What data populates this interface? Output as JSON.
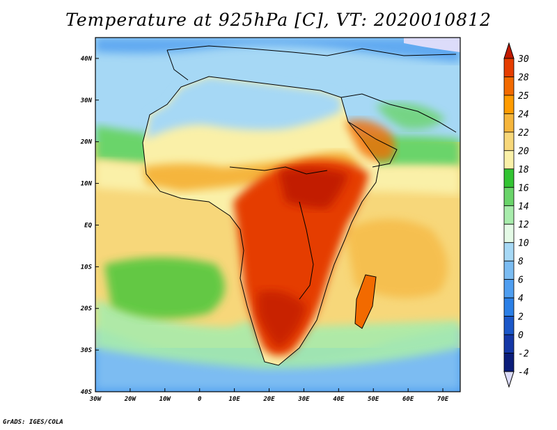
{
  "title": "Temperature at 925hPa [C], VT: 2020010812",
  "credit": "GrADS: IGES/COLA",
  "map": {
    "lon_labels": [
      "30W",
      "20W",
      "10W",
      "0",
      "10E",
      "20E",
      "30E",
      "40E",
      "50E",
      "60E",
      "70E"
    ],
    "lat_labels": [
      "40N",
      "30N",
      "20N",
      "10N",
      "EQ",
      "10S",
      "20S",
      "30S",
      "40S"
    ],
    "lon_range": [
      -30,
      75
    ],
    "lat_range": [
      -40,
      45
    ]
  },
  "colorbar": {
    "labels": [
      "30",
      "28",
      "25",
      "24",
      "22",
      "20",
      "18",
      "16",
      "14",
      "12",
      "10",
      "8",
      "6",
      "4",
      "2",
      "0",
      "-2",
      "-4"
    ],
    "colors": [
      "#c21a00",
      "#e53d00",
      "#f26a00",
      "#ff9b00",
      "#f5b53c",
      "#f7d77a",
      "#faf0a8",
      "#33c433",
      "#6ad46a",
      "#a8ecac",
      "#e4fae6",
      "#a6d8f5",
      "#7bbcf2",
      "#4f9ef0",
      "#2b7fe6",
      "#1b57c8",
      "#1437a6",
      "#0b1d7a",
      "#dcdcfa"
    ]
  },
  "palette": {
    "ocean_south_deep": "#2b7fe6",
    "ocean_south": "#7bbcf2",
    "ocean_light": "#a8ecac",
    "land_hot": "#c21a00",
    "sahara": "#7bbcf2"
  }
}
